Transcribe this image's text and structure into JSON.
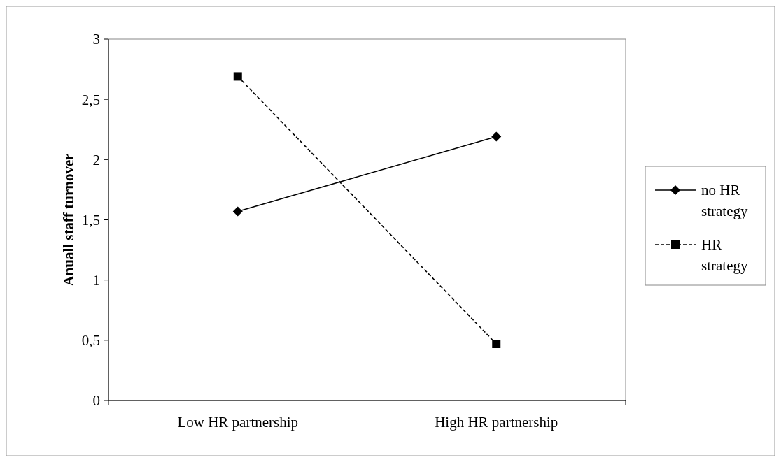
{
  "chart_data": {
    "type": "line",
    "ylabel": "Anuall staff turnover",
    "categories": [
      "Low HR partnership",
      "High HR partnership"
    ],
    "series": [
      {
        "name": "no HR strategy",
        "color": "#000000",
        "values": [
          1.57,
          2.19
        ],
        "marker": "diamond",
        "line_style": "solid"
      },
      {
        "name": "HR strategy",
        "color": "#000000",
        "values": [
          2.69,
          0.47
        ],
        "marker": "square",
        "line_style": "dashed"
      }
    ],
    "ylim": [
      0,
      3
    ],
    "yticks": [
      0,
      {
        "value": 0.5,
        "label": "0,5"
      },
      1,
      {
        "value": 1.5,
        "label": "1,5"
      },
      2,
      {
        "value": 2.5,
        "label": "2,5"
      },
      3
    ],
    "grid": false,
    "legend": "right"
  }
}
